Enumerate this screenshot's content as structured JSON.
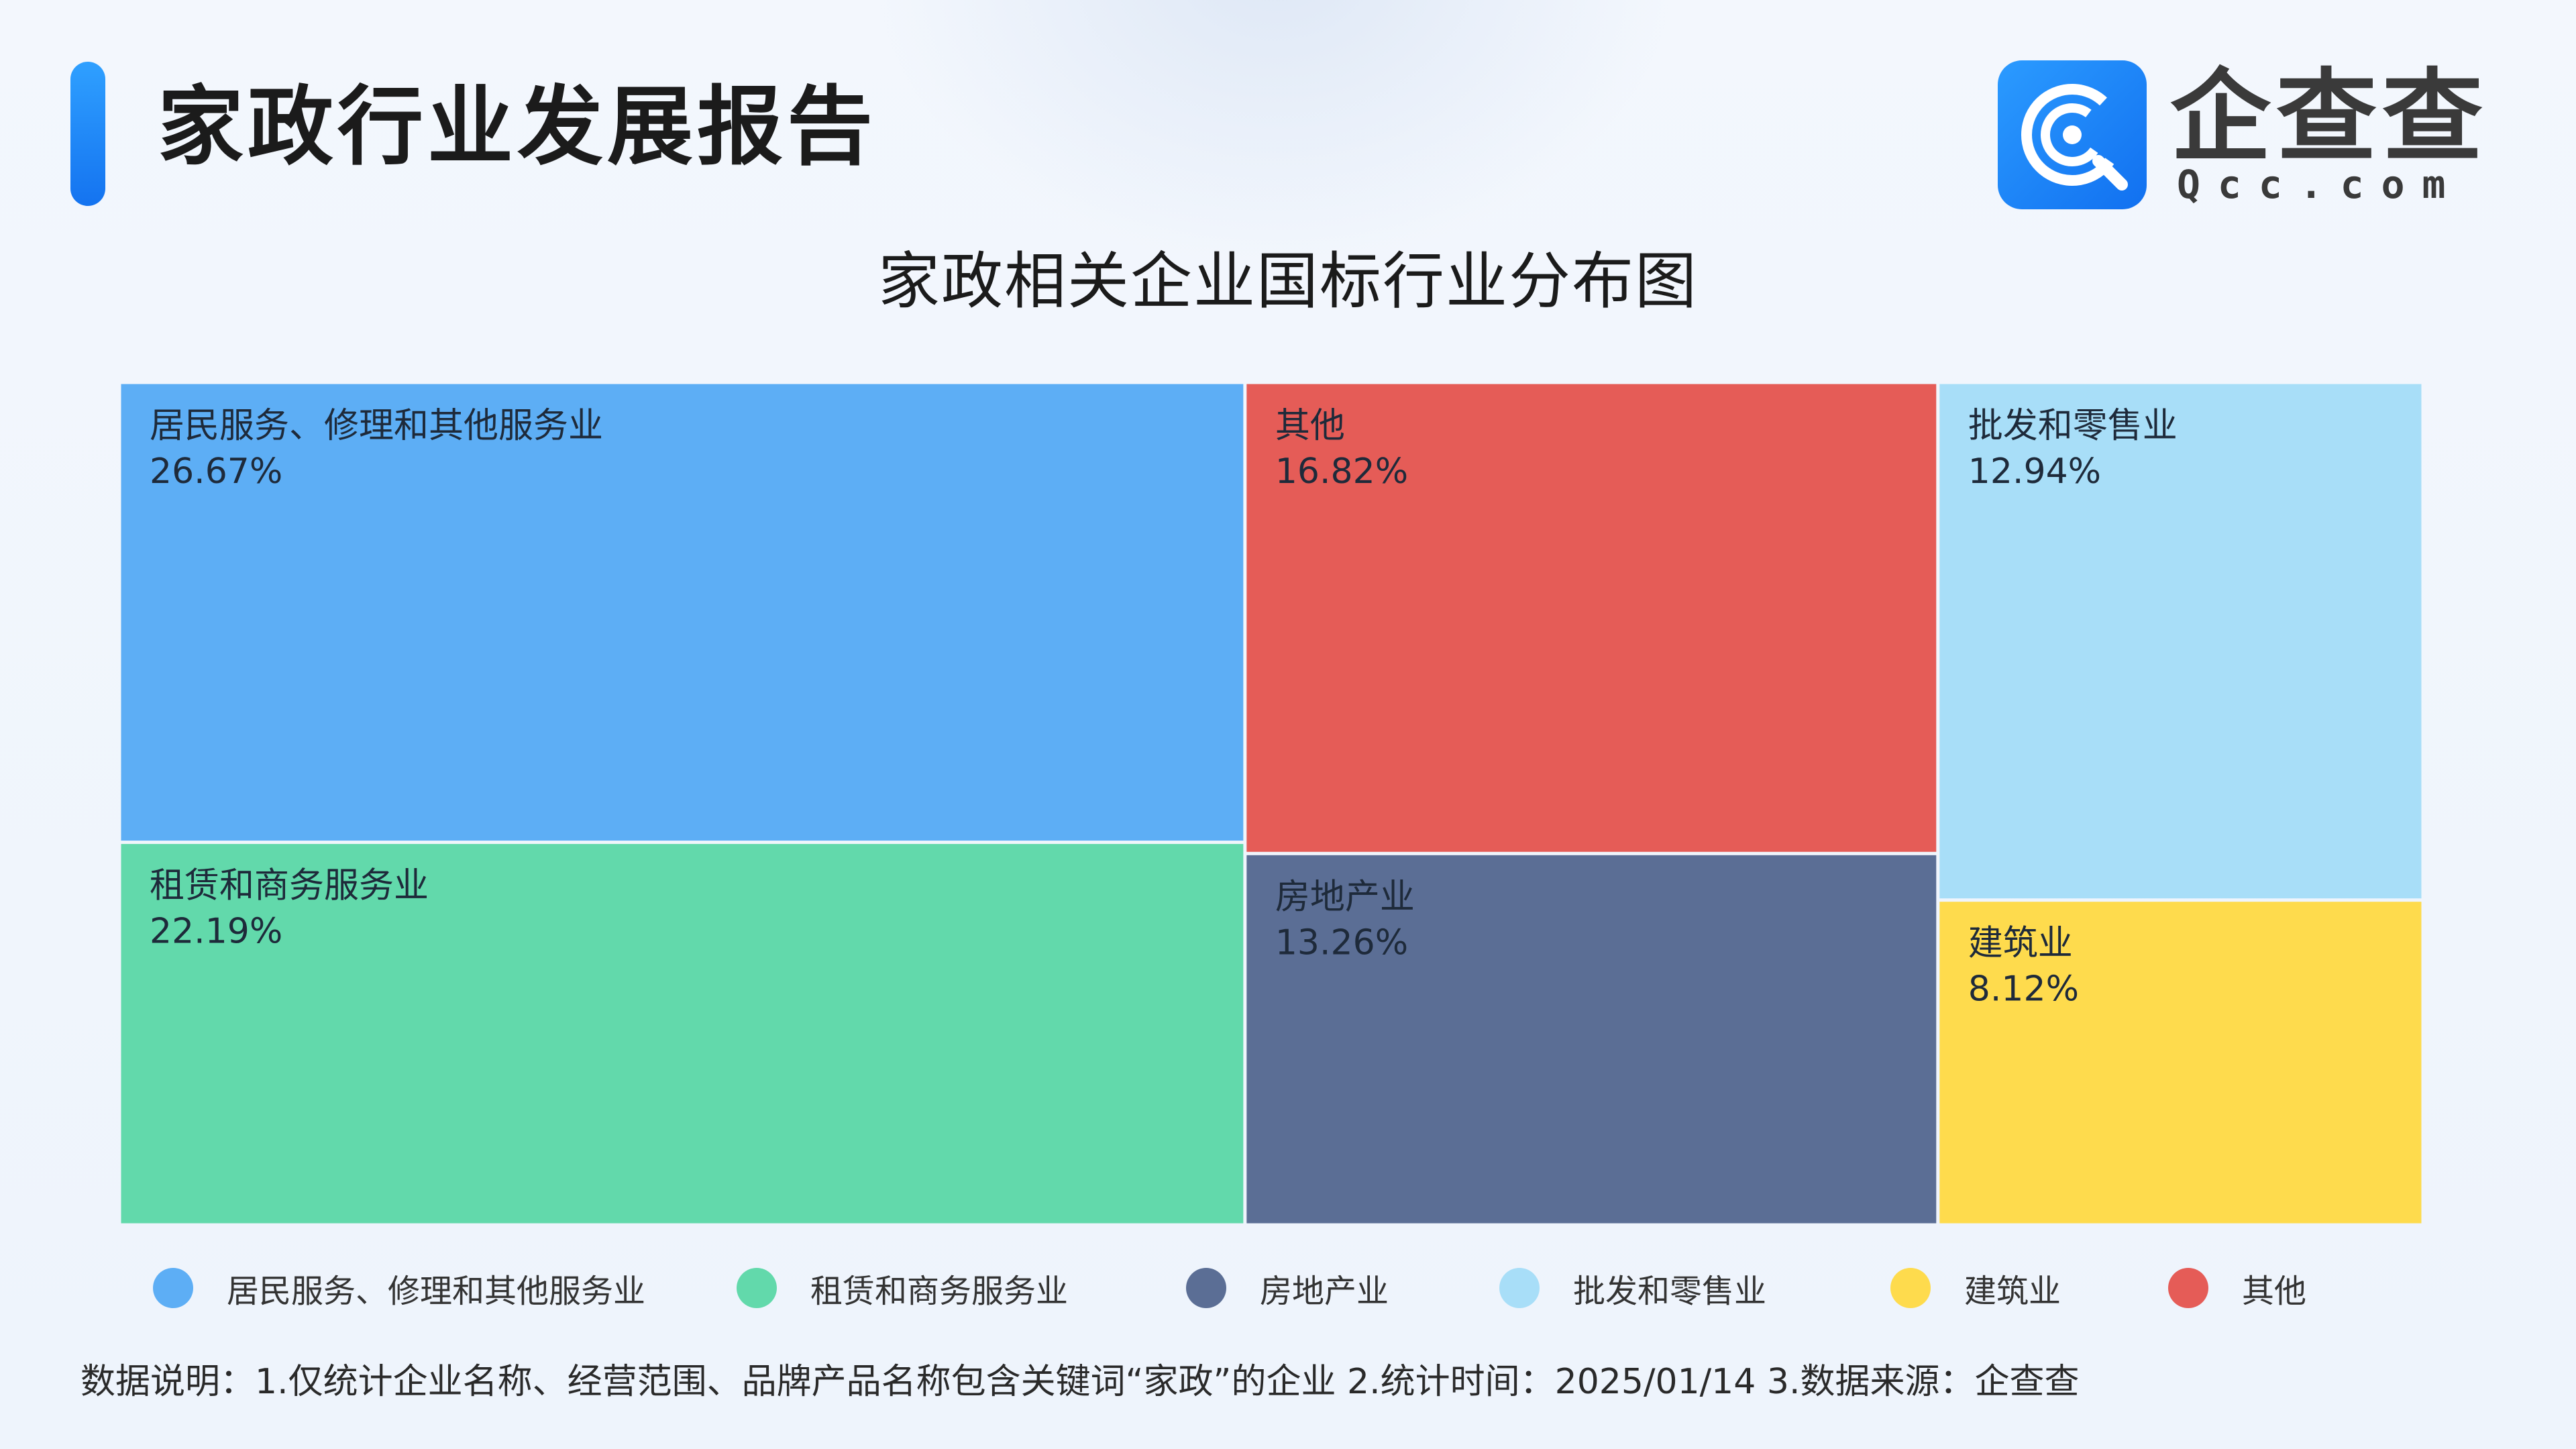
{
  "header": {
    "report_title": "家政行业发展报告",
    "logo_text": "企查查",
    "logo_sub": "Qcc.com"
  },
  "chart_data": {
    "type": "treemap",
    "title": "家政相关企业国标行业分布图",
    "items": [
      {
        "name": "居民服务、修理和其他服务业",
        "value": 26.67,
        "label": "26.67%",
        "color": "#5daef5"
      },
      {
        "name": "租赁和商务服务业",
        "value": 22.19,
        "label": "22.19%",
        "color": "#62d9ab"
      },
      {
        "name": "其他",
        "value": 16.82,
        "label": "16.82%",
        "color": "#e55c57"
      },
      {
        "name": "房地产业",
        "value": 13.26,
        "label": "13.26%",
        "color": "#5b6e95"
      },
      {
        "name": "批发和零售业",
        "value": 12.94,
        "label": "12.94%",
        "color": "#a8def8"
      },
      {
        "name": "建筑业",
        "value": 8.12,
        "label": "8.12%",
        "color": "#fedb4d"
      }
    ],
    "legend": [
      {
        "name": "居民服务、修理和其他服务业",
        "color": "#5daef5"
      },
      {
        "name": "租赁和商务服务业",
        "color": "#62d9ab"
      },
      {
        "name": "房地产业",
        "color": "#5b6e95"
      },
      {
        "name": "批发和零售业",
        "color": "#a8def8"
      },
      {
        "name": "建筑业",
        "color": "#fedb4d"
      },
      {
        "name": "其他",
        "color": "#e55c57"
      }
    ]
  },
  "footnote": "数据说明：1.仅统计企业名称、经营范围、品牌产品名称包含关键词“家政”的企业   2.统计时间：2025/01/14    3.数据来源：企查查"
}
